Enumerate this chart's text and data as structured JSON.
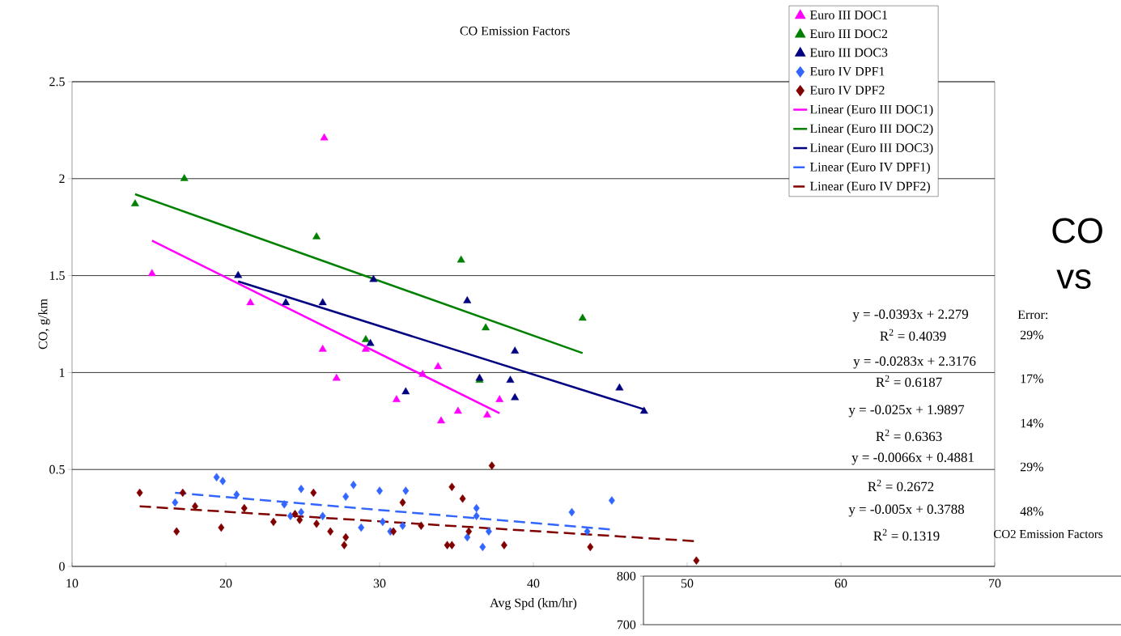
{
  "chart_data": [
    {
      "type": "scatter",
      "title": "CO Emission Factors",
      "xlabel": "Avg Spd (km/hr)",
      "ylabel": "CO, g/km",
      "xlim": [
        10,
        70
      ],
      "xticks": [
        10,
        20,
        30,
        40,
        50,
        60,
        70
      ],
      "ylim": [
        0,
        2.5
      ],
      "yticks": [
        0,
        0.5,
        1,
        1.5,
        2,
        2.5
      ],
      "grid": "y",
      "legend": "top right",
      "series": [
        {
          "name": "Euro III DOC1",
          "color": "#ff00ff",
          "marker": "triangle",
          "x": [
            15.2,
            21.6,
            26.4,
            26.3,
            27.2,
            29.1,
            31.1,
            32.8,
            33.8,
            34.0,
            35.1,
            37.0,
            37.8
          ],
          "values": [
            1.51,
            1.36,
            2.21,
            1.12,
            0.97,
            1.12,
            0.86,
            0.99,
            1.03,
            0.75,
            0.8,
            0.78,
            0.86
          ]
        },
        {
          "name": "Euro III DOC2",
          "color": "#008000",
          "marker": "triangle",
          "x": [
            14.1,
            17.3,
            25.9,
            29.1,
            35.3,
            36.9,
            36.5,
            43.2
          ],
          "values": [
            1.87,
            2.0,
            1.7,
            1.17,
            1.58,
            1.23,
            0.96,
            1.28
          ]
        },
        {
          "name": "Euro III DOC3",
          "color": "#000080",
          "marker": "triangle",
          "x": [
            20.8,
            23.9,
            26.3,
            29.4,
            29.6,
            31.7,
            35.7,
            36.5,
            38.5,
            38.8,
            38.8,
            45.6,
            47.2
          ],
          "values": [
            1.5,
            1.36,
            1.36,
            1.15,
            1.48,
            0.9,
            1.37,
            0.97,
            0.96,
            1.11,
            0.87,
            0.92,
            0.8
          ]
        },
        {
          "name": "Euro IV DPF1",
          "color": "#3366ff",
          "marker": "diamond",
          "x": [
            16.7,
            19.4,
            19.8,
            20.7,
            23.8,
            24.2,
            24.9,
            24.9,
            26.3,
            27.8,
            28.3,
            28.8,
            30.0,
            30.2,
            30.7,
            31.5,
            31.7,
            35.7,
            36.3,
            36.3,
            36.7,
            37.1,
            42.5,
            43.5,
            45.1
          ],
          "values": [
            0.33,
            0.46,
            0.44,
            0.37,
            0.32,
            0.26,
            0.4,
            0.28,
            0.26,
            0.36,
            0.42,
            0.2,
            0.39,
            0.23,
            0.18,
            0.21,
            0.39,
            0.15,
            0.3,
            0.26,
            0.1,
            0.18,
            0.28,
            0.18,
            0.34
          ]
        },
        {
          "name": "Euro IV DPF2",
          "color": "#800000",
          "marker": "diamond",
          "x": [
            14.4,
            17.2,
            16.8,
            18.0,
            19.7,
            21.2,
            23.1,
            24.5,
            24.8,
            25.7,
            25.9,
            26.8,
            27.8,
            27.7,
            30.9,
            31.5,
            32.7,
            34.4,
            34.7,
            34.7,
            35.4,
            35.8,
            37.3,
            38.1,
            43.7,
            50.6
          ],
          "values": [
            0.38,
            0.38,
            0.18,
            0.31,
            0.2,
            0.3,
            0.23,
            0.27,
            0.24,
            0.38,
            0.22,
            0.18,
            0.15,
            0.11,
            0.18,
            0.33,
            0.21,
            0.11,
            0.11,
            0.41,
            0.35,
            0.18,
            0.52,
            0.11,
            0.1,
            0.03
          ]
        },
        {
          "name": "Linear (Euro III DOC1)",
          "type": "line",
          "color": "#ff00ff",
          "marker": "none",
          "line_style": "solid",
          "x": [
            15.2,
            37.8
          ],
          "values": [
            1.68,
            0.79
          ]
        },
        {
          "name": "Linear (Euro III DOC2)",
          "type": "line",
          "color": "#008000",
          "marker": "none",
          "line_style": "solid",
          "x": [
            14.1,
            43.2
          ],
          "values": [
            1.92,
            1.1
          ]
        },
        {
          "name": "Linear (Euro III DOC3)",
          "type": "line",
          "color": "#000080",
          "marker": "none",
          "line_style": "solid",
          "x": [
            20.8,
            47.2
          ],
          "values": [
            1.47,
            0.81
          ]
        },
        {
          "name": "Linear (Euro IV DPF1)",
          "type": "line",
          "color": "#3366ff",
          "marker": "none",
          "line_style": "dashed",
          "x": [
            16.7,
            45.1
          ],
          "values": [
            0.38,
            0.19
          ]
        },
        {
          "name": "Linear (Euro IV DPF2)",
          "type": "line",
          "color": "#800000",
          "marker": "none",
          "line_style": "dashed",
          "x": [
            14.4,
            50.6
          ],
          "values": [
            0.31,
            0.13
          ]
        }
      ],
      "annotations": [
        "y = -0.0393x + 2.279",
        "R$^{2}$ = 0.4039",
        "y = -0.0283x + 2.3176",
        "R$^{2}$ = 0.6187",
        "y = -0.025x + 1.9897",
        "R$^{2}$ = 0.6363",
        "y = -0.0066x + 0.4881",
        "R$^{2}$ = 0.2672",
        "y = -0.005x + 0.3788",
        "R$^{2}$ = 0.1319",
        "Error:",
        "29%",
        "17%",
        "14%",
        "29%",
        "48%",
        "CO",
        "vs"
      ]
    },
    {
      "type": "other",
      "title": "CO2 Emission Factors",
      "annotations": [
        "800",
        "700"
      ]
    }
  ]
}
